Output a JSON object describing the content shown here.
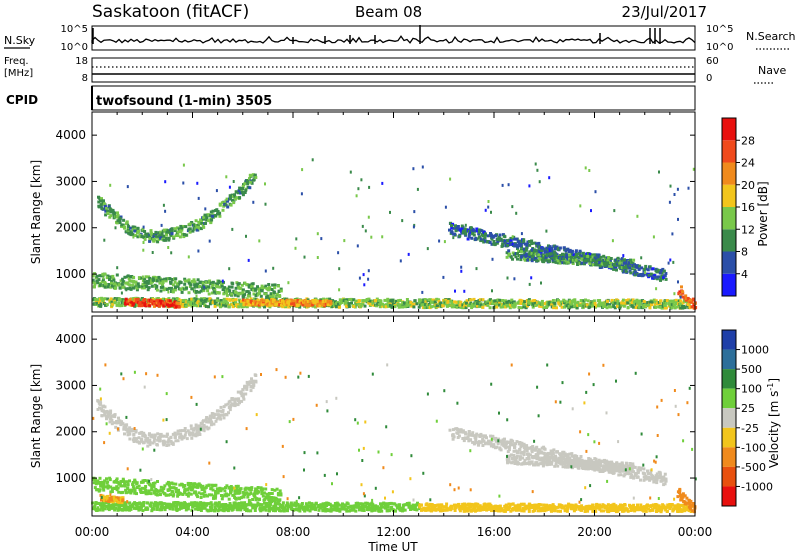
{
  "header": {
    "station": "Saskatoon (fitACF)",
    "beam": "Beam 08",
    "date": "23/Jul/2017"
  },
  "panels": {
    "nsky_label": "N.Sky",
    "nsearch_label": "N.Search",
    "freq_label_1": "Freq.",
    "freq_label_2": "[MHz]",
    "nave_label": "Nave",
    "cpid_label": "CPID",
    "cpid_text": "twofsound (1-min) 3505",
    "nsky_ticks": [
      "10^5",
      "10^0"
    ],
    "nsearch_ticks": [
      "10^5",
      "10^0"
    ],
    "freq_ticks": [
      "18",
      "8"
    ],
    "nave_ticks": [
      "60",
      "0"
    ]
  },
  "x_axis": {
    "label": "Time UT",
    "ticks": [
      "00:00",
      "04:00",
      "08:00",
      "12:00",
      "16:00",
      "20:00",
      "00:00"
    ]
  },
  "y_axis": {
    "label": "Slant Range [km]",
    "ticks": [
      "1000",
      "2000",
      "3000",
      "4000"
    ]
  },
  "power_colorbar": {
    "label": "Power [dB]",
    "ticks": [
      "4",
      "8",
      "12",
      "16",
      "20",
      "24",
      "28"
    ],
    "colors": [
      "#1a1aff",
      "#2b4fa8",
      "#3a8a4a",
      "#79c84a",
      "#f2c51c",
      "#f08a1c",
      "#f04a1c",
      "#e8100e"
    ]
  },
  "velocity_colorbar": {
    "label_main": "Velocity",
    "label_units": "[m s",
    "label_exp": "-1",
    "label_close": "]",
    "ticks": [
      "1000",
      "500",
      "100",
      "25",
      "-25",
      "-100",
      "-500",
      "-1000"
    ],
    "colors": [
      "#1f3fa8",
      "#2d6f9a",
      "#2f8a3a",
      "#6fcf3a",
      "#c8c8c0",
      "#f2c51c",
      "#f08a1c",
      "#e8500e",
      "#e8100e"
    ]
  },
  "chart_data": [
    {
      "type": "heatmap",
      "title": "Power",
      "xlabel": "Time UT",
      "ylabel": "Slant Range [km]",
      "xlim": [
        0,
        24
      ],
      "ylim": [
        180,
        4500
      ],
      "colorbar_range": [
        0,
        30
      ],
      "regions": [
        {
          "desc": "arc",
          "t0": 0.2,
          "t1": 6.5,
          "r_start": 2600,
          "r_mid": 1850,
          "r_end": 3200,
          "t_mid": 2.4,
          "width_km": 250,
          "power": 11
        },
        {
          "desc": "band",
          "t0": 14.2,
          "t1": 22.8,
          "r0": 2000,
          "r1": 1000,
          "width_km": 260,
          "power": 7
        },
        {
          "desc": "band",
          "t0": 16.5,
          "t1": 21.5,
          "r0": 1450,
          "r1": 1250,
          "width_km": 200,
          "power": 10
        },
        {
          "desc": "band",
          "t0": 0.0,
          "t1": 7.5,
          "r0": 900,
          "r1": 650,
          "width_km": 300,
          "power": 12
        },
        {
          "desc": "band",
          "t0": 0.0,
          "t1": 23.8,
          "r0": 420,
          "r1": 380,
          "width_km": 180,
          "power": 14
        },
        {
          "desc": "blob",
          "t0": 1.3,
          "t1": 3.4,
          "r0": 430,
          "r1": 380,
          "width_km": 140,
          "power": 27
        },
        {
          "desc": "blob",
          "t0": 6.0,
          "t1": 9.5,
          "r0": 420,
          "r1": 400,
          "width_km": 120,
          "power": 21
        },
        {
          "desc": "blob",
          "t0": 23.3,
          "t1": 23.95,
          "r0": 700,
          "r1": 350,
          "width_km": 200,
          "power": 25
        }
      ]
    },
    {
      "type": "heatmap",
      "title": "Velocity",
      "xlabel": "Time UT",
      "ylabel": "Slant Range [km]",
      "xlim": [
        0,
        24
      ],
      "ylim": [
        180,
        4500
      ],
      "colorbar_range": [
        -1000,
        1000
      ],
      "regions": [
        {
          "desc": "arc",
          "t0": 0.2,
          "t1": 6.5,
          "r_start": 2600,
          "r_mid": 1850,
          "r_end": 3200,
          "t_mid": 2.4,
          "width_km": 280,
          "velocity": 0
        },
        {
          "desc": "band",
          "t0": 14.2,
          "t1": 22.8,
          "r0": 2000,
          "r1": 1000,
          "width_km": 260,
          "velocity": 0
        },
        {
          "desc": "band",
          "t0": 16.5,
          "t1": 21.5,
          "r0": 1450,
          "r1": 1250,
          "width_km": 200,
          "velocity": 0
        },
        {
          "desc": "band",
          "t0": 0.0,
          "t1": 7.5,
          "r0": 900,
          "r1": 650,
          "width_km": 300,
          "velocity": 80
        },
        {
          "desc": "band",
          "t0": 0.0,
          "t1": 13.0,
          "r0": 420,
          "r1": 400,
          "width_km": 180,
          "velocity": 60
        },
        {
          "desc": "band",
          "t0": 13.0,
          "t1": 23.8,
          "r0": 400,
          "r1": 380,
          "width_km": 160,
          "velocity": -60
        },
        {
          "desc": "blob",
          "t0": 0.3,
          "t1": 1.2,
          "r0": 600,
          "r1": 550,
          "width_km": 120,
          "velocity": -100
        },
        {
          "desc": "blob",
          "t0": 23.3,
          "t1": 23.95,
          "r0": 700,
          "r1": 350,
          "width_km": 200,
          "velocity": -300
        }
      ]
    }
  ]
}
